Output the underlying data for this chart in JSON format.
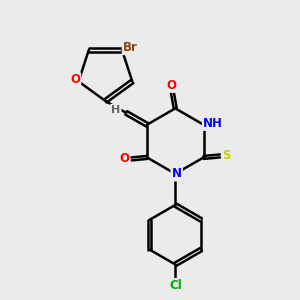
{
  "bg_color": "#ebebeb",
  "atom_colors": {
    "Br": "#8B4513",
    "O": "#FF0000",
    "N": "#0000FF",
    "S": "#CCCC00",
    "Cl": "#00AA00",
    "C": "#000000",
    "H": "#666666"
  },
  "bond_color": "#000000",
  "bond_width": 1.8
}
